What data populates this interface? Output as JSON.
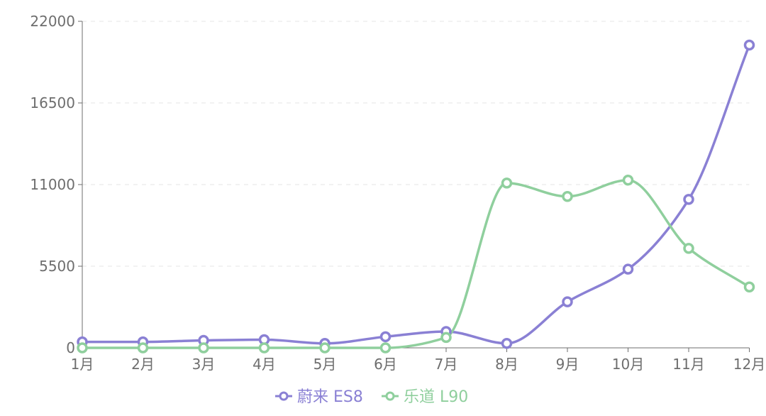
{
  "chart_data": {
    "type": "line",
    "smooth": true,
    "categories": [
      "1月",
      "2月",
      "3月",
      "4月",
      "5月",
      "6月",
      "7月",
      "8月",
      "9月",
      "10月",
      "11月",
      "12月"
    ],
    "ylim": [
      0,
      22000
    ],
    "yticks": [
      0,
      5500,
      11000,
      16500,
      22000
    ],
    "ytick_labels": [
      "0",
      "5500",
      "11000",
      "16500",
      "22000"
    ],
    "grid": "horizontal dashed",
    "legend_position": "bottom-center",
    "series": [
      {
        "name": "蔚来 ES8",
        "color": "#8a80d4",
        "values": [
          400,
          400,
          500,
          550,
          300,
          750,
          1100,
          300,
          3100,
          5300,
          10000,
          20400
        ]
      },
      {
        "name": "乐道 L90",
        "color": "#8fcf9d",
        "values": [
          0,
          0,
          0,
          0,
          0,
          0,
          700,
          11100,
          10200,
          11300,
          6700,
          4100
        ]
      }
    ]
  }
}
